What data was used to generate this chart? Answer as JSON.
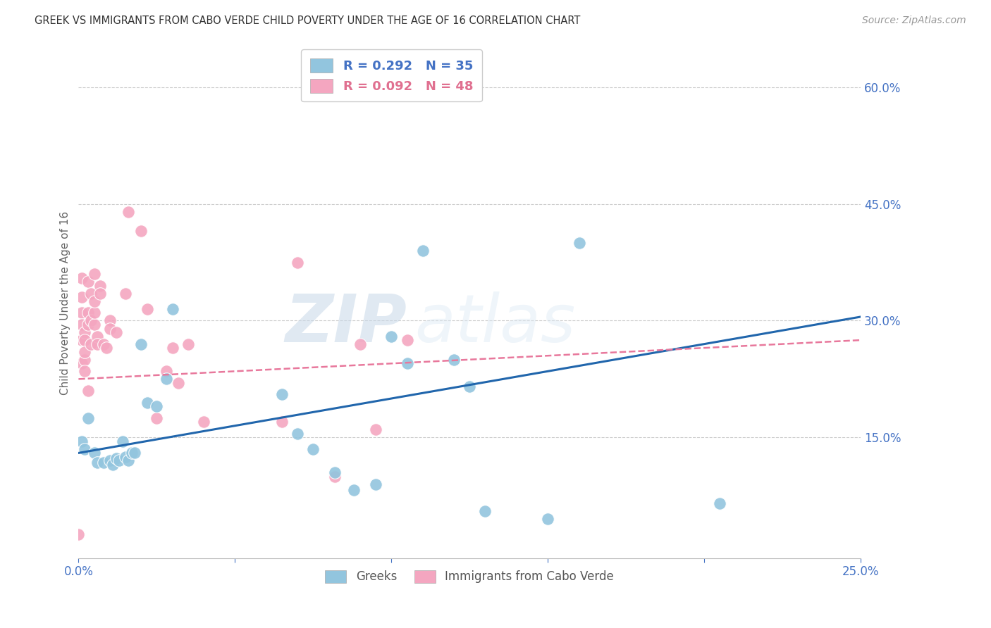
{
  "title": "GREEK VS IMMIGRANTS FROM CABO VERDE CHILD POVERTY UNDER THE AGE OF 16 CORRELATION CHART",
  "source": "Source: ZipAtlas.com",
  "ylabel": "Child Poverty Under the Age of 16",
  "right_yticks": [
    "60.0%",
    "45.0%",
    "30.0%",
    "15.0%"
  ],
  "right_ytick_vals": [
    0.6,
    0.45,
    0.3,
    0.15
  ],
  "xlim": [
    0.0,
    0.25
  ],
  "ylim": [
    -0.005,
    0.65
  ],
  "legend_blue_label": "R = 0.292   N = 35",
  "legend_pink_label": "R = 0.092   N = 48",
  "legend_label_blue": "Greeks",
  "legend_label_pink": "Immigrants from Cabo Verde",
  "blue_color": "#92c5de",
  "pink_color": "#f4a6c0",
  "blue_line_color": "#2166ac",
  "pink_line_color": "#e8789c",
  "watermark_zip": "ZIP",
  "watermark_atlas": "atlas",
  "blue_scatter_x": [
    0.001,
    0.002,
    0.003,
    0.005,
    0.006,
    0.008,
    0.01,
    0.011,
    0.012,
    0.013,
    0.014,
    0.015,
    0.016,
    0.017,
    0.018,
    0.02,
    0.022,
    0.025,
    0.028,
    0.03,
    0.065,
    0.07,
    0.075,
    0.082,
    0.088,
    0.095,
    0.1,
    0.105,
    0.11,
    0.12,
    0.125,
    0.13,
    0.15,
    0.16,
    0.205
  ],
  "blue_scatter_y": [
    0.145,
    0.135,
    0.175,
    0.13,
    0.118,
    0.118,
    0.12,
    0.115,
    0.123,
    0.12,
    0.145,
    0.125,
    0.12,
    0.13,
    0.13,
    0.27,
    0.195,
    0.19,
    0.225,
    0.315,
    0.205,
    0.155,
    0.135,
    0.105,
    0.082,
    0.09,
    0.28,
    0.245,
    0.39,
    0.25,
    0.215,
    0.055,
    0.045,
    0.4,
    0.065
  ],
  "pink_scatter_x": [
    0.0,
    0.001,
    0.001,
    0.001,
    0.001,
    0.001,
    0.001,
    0.002,
    0.002,
    0.002,
    0.002,
    0.002,
    0.003,
    0.003,
    0.003,
    0.003,
    0.004,
    0.004,
    0.004,
    0.005,
    0.005,
    0.005,
    0.005,
    0.006,
    0.006,
    0.007,
    0.007,
    0.008,
    0.009,
    0.01,
    0.01,
    0.012,
    0.015,
    0.016,
    0.02,
    0.022,
    0.025,
    0.028,
    0.03,
    0.032,
    0.035,
    0.04,
    0.065,
    0.07,
    0.082,
    0.09,
    0.095,
    0.105
  ],
  "pink_scatter_y": [
    0.025,
    0.355,
    0.33,
    0.31,
    0.295,
    0.275,
    0.245,
    0.285,
    0.25,
    0.275,
    0.26,
    0.235,
    0.21,
    0.31,
    0.35,
    0.295,
    0.3,
    0.335,
    0.27,
    0.295,
    0.31,
    0.36,
    0.325,
    0.28,
    0.27,
    0.345,
    0.335,
    0.27,
    0.265,
    0.3,
    0.29,
    0.285,
    0.335,
    0.44,
    0.415,
    0.315,
    0.175,
    0.235,
    0.265,
    0.22,
    0.27,
    0.17,
    0.17,
    0.375,
    0.1,
    0.27,
    0.16,
    0.275
  ],
  "blue_regression": [
    0.13,
    0.305
  ],
  "pink_regression": [
    0.225,
    0.275
  ]
}
